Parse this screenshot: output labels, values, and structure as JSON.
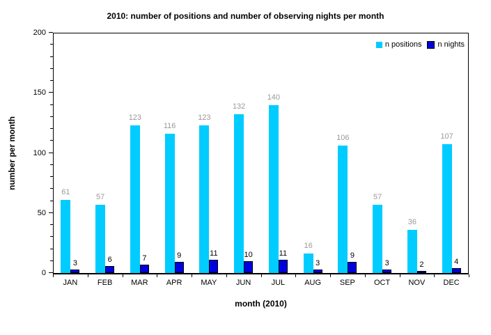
{
  "chart_data": {
    "type": "bar",
    "title": "2010:  number of positions and number of observing nights per month",
    "xlabel": "month (2010)",
    "ylabel": "number per month",
    "categories": [
      "JAN",
      "FEB",
      "MAR",
      "APR",
      "MAY",
      "JUN",
      "JUL",
      "AUG",
      "SEP",
      "OCT",
      "NOV",
      "DEC"
    ],
    "series": [
      {
        "name": "n positions",
        "color": "#00ccff",
        "label_color": "#999999",
        "values": [
          61,
          57,
          123,
          116,
          123,
          132,
          140,
          16,
          106,
          57,
          36,
          107
        ]
      },
      {
        "name": "n nights",
        "color": "#0000dd",
        "border_color": "#000000",
        "label_color": "#000000",
        "values": [
          3,
          6,
          7,
          9,
          11,
          10,
          11,
          3,
          9,
          3,
          2,
          4
        ]
      }
    ],
    "ylim": [
      0,
      200
    ],
    "yticks": [
      0,
      50,
      100,
      150,
      200
    ],
    "ytick_step": 50,
    "minor_tick_step": 10,
    "grid": false,
    "legend_position": "top-right-inside",
    "background_color": "#ffffff",
    "text_color": "#000000"
  }
}
